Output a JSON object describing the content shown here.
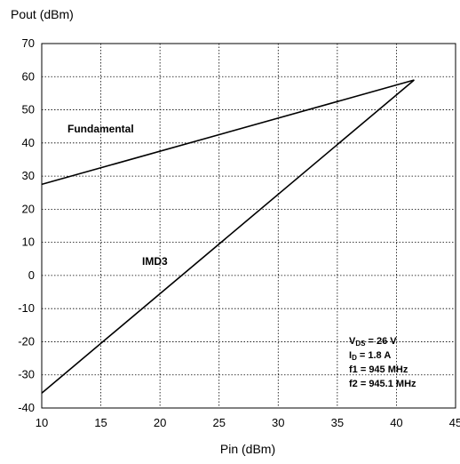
{
  "chart_data": {
    "type": "line",
    "title": "",
    "xlabel": "Pin (dBm)",
    "ylabel": "Pout (dBm)",
    "xlim": [
      10,
      45
    ],
    "ylim": [
      -40,
      70
    ],
    "xticks": [
      "10",
      "15",
      "20",
      "25",
      "30",
      "35",
      "40",
      "45"
    ],
    "yticks": [
      "70",
      "60",
      "50",
      "40",
      "30",
      "20",
      "10",
      "0",
      "-10",
      "-20",
      "-30",
      "-40"
    ],
    "grid": true,
    "series": [
      {
        "name": "Fundamental",
        "x": [
          10,
          41.5
        ],
        "y": [
          27.5,
          59
        ]
      },
      {
        "name": "IMD3",
        "x": [
          10,
          41.5
        ],
        "y": [
          -35.5,
          59
        ]
      }
    ],
    "conditions": [
      {
        "sym": "V",
        "sub": "DS",
        "rest": " = 26 V"
      },
      {
        "sym": "I",
        "sub": "D",
        "rest": " = 1.8 A"
      },
      {
        "sym": "f1 = 945 MHz",
        "sub": "",
        "rest": ""
      },
      {
        "sym": "f2 = 945.1 MHz",
        "sub": "",
        "rest": ""
      }
    ],
    "colors": {
      "line": "#000000",
      "grid": "#000000",
      "frame": "#000000"
    }
  }
}
